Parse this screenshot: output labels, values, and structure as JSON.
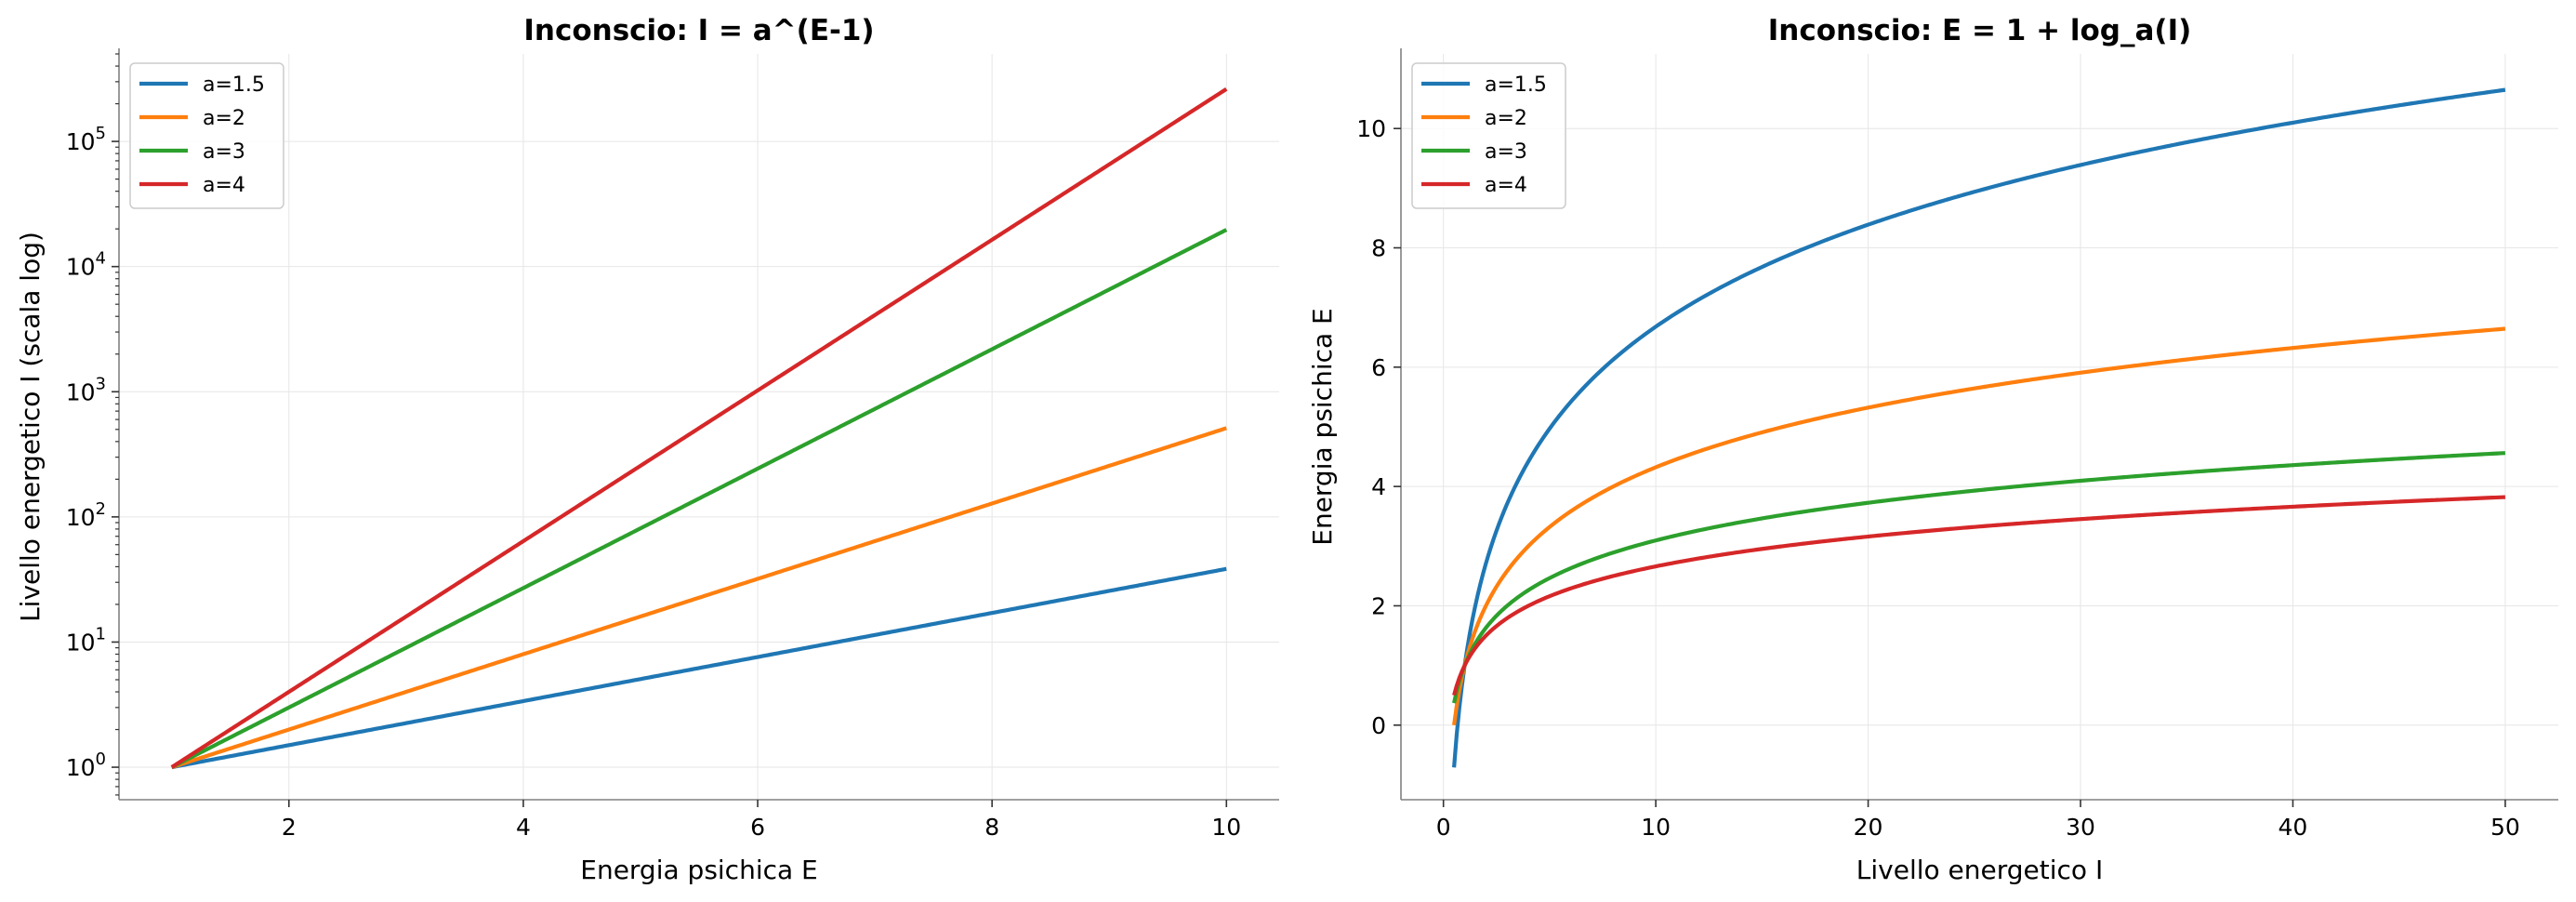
{
  "chart_data": [
    {
      "type": "line",
      "title": "Inconscio: I = a^(E-1)",
      "xlabel": "Energia psichica E",
      "ylabel": "Livello energetico I (scala log)",
      "yscale": "log",
      "xlim": [
        0.55,
        10.45
      ],
      "ylim": [
        0.55,
        500000
      ],
      "xticks": [
        2,
        4,
        6,
        8,
        10
      ],
      "xtick_labels": [
        "2",
        "4",
        "6",
        "8",
        "10"
      ],
      "yticks": [
        1,
        10,
        100,
        1000,
        10000,
        100000
      ],
      "ytick_labels": [
        {
          "base": "10",
          "exp": "0"
        },
        {
          "base": "10",
          "exp": "1"
        },
        {
          "base": "10",
          "exp": "2"
        },
        {
          "base": "10",
          "exp": "3"
        },
        {
          "base": "10",
          "exp": "4"
        },
        {
          "base": "10",
          "exp": "5"
        }
      ],
      "grid": true,
      "legend": "top-left",
      "x_range": [
        1,
        10
      ],
      "series": [
        {
          "name": "a=1.5",
          "a": 1.5,
          "color": "#1f77b4"
        },
        {
          "name": "a=2",
          "a": 2,
          "color": "#ff7f0e"
        },
        {
          "name": "a=3",
          "a": 3,
          "color": "#2ca02c"
        },
        {
          "name": "a=4",
          "a": 4,
          "color": "#d62728"
        }
      ]
    },
    {
      "type": "line",
      "title": "Inconscio: E = 1 + log_a(I)",
      "xlabel": "Livello energetico I",
      "ylabel": "Energia psichica E",
      "yscale": "linear",
      "xlim": [
        -2.0,
        52.5
      ],
      "ylim": [
        -1.25,
        11.25
      ],
      "xticks": [
        0,
        10,
        20,
        30,
        40,
        50
      ],
      "xtick_labels": [
        "0",
        "10",
        "20",
        "30",
        "40",
        "50"
      ],
      "yticks": [
        0,
        2,
        4,
        6,
        8,
        10
      ],
      "ytick_labels": [
        "0",
        "2",
        "4",
        "6",
        "8",
        "10"
      ],
      "grid": true,
      "legend": "top-left",
      "x_range": [
        0.5,
        50
      ],
      "series": [
        {
          "name": "a=1.5",
          "a": 1.5,
          "color": "#1f77b4"
        },
        {
          "name": "a=2",
          "a": 2,
          "color": "#ff7f0e"
        },
        {
          "name": "a=3",
          "a": 3,
          "color": "#2ca02c"
        },
        {
          "name": "a=4",
          "a": 4,
          "color": "#d62728"
        }
      ]
    }
  ]
}
